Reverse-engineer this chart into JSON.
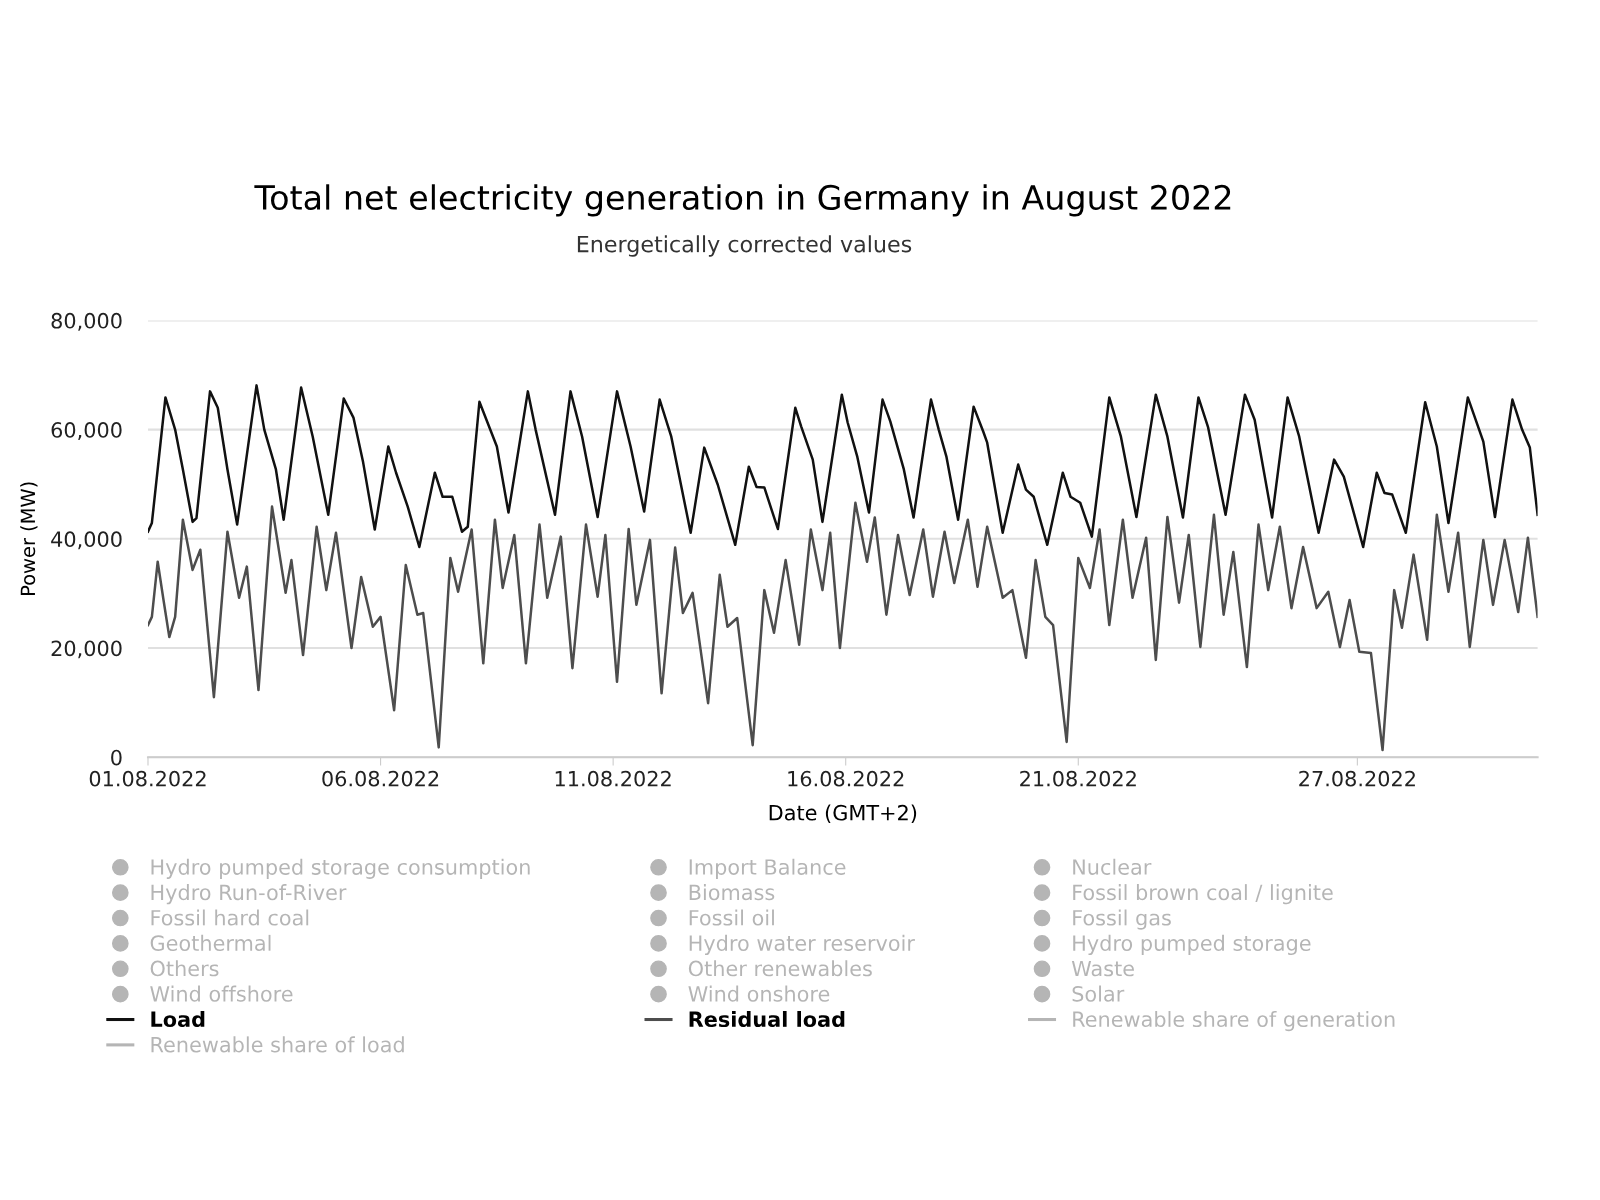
{
  "chart_data": {
    "type": "line",
    "title": "Total net electricity generation in Germany in August 2022",
    "subtitle": "Energetically corrected values",
    "xlabel": "Date (GMT+2)",
    "ylabel": "Power (MW)",
    "xlim": [
      "2022-08-01T00:00",
      "2022-08-30T21:00"
    ],
    "ylim": [
      0,
      80000
    ],
    "xticks": [
      {
        "value": "2022-08-01",
        "label": "01.08.2022"
      },
      {
        "value": "2022-08-06",
        "label": "06.08.2022"
      },
      {
        "value": "2022-08-11",
        "label": "11.08.2022"
      },
      {
        "value": "2022-08-16",
        "label": "16.08.2022"
      },
      {
        "value": "2022-08-21",
        "label": "21.08.2022"
      },
      {
        "value": "2022-08-27",
        "label": "27.08.2022"
      }
    ],
    "yticks": [
      {
        "value": 0,
        "label": "0"
      },
      {
        "value": 20000,
        "label": "20,000"
      },
      {
        "value": 40000,
        "label": "40,000"
      },
      {
        "value": 60000,
        "label": "60,000"
      },
      {
        "value": 80000,
        "label": "80,000"
      }
    ],
    "grid": "y",
    "legend": "bottom",
    "marker": "none",
    "line_style": "solid",
    "series": [
      {
        "name": "Hydro pumped storage consumption",
        "type": "area",
        "color": "#b5b5b5"
      },
      {
        "name": "Import Balance",
        "type": "area",
        "color": "#b5b5b5"
      },
      {
        "name": "Nuclear",
        "type": "area",
        "color": "#b5b5b5"
      },
      {
        "name": "Hydro Run-of-River",
        "type": "area",
        "color": "#b5b5b5"
      },
      {
        "name": "Biomass",
        "type": "area",
        "color": "#b5b5b5"
      },
      {
        "name": "Fossil brown coal / lignite",
        "type": "area",
        "color": "#b5b5b5"
      },
      {
        "name": "Fossil hard coal",
        "type": "area",
        "color": "#b5b5b5"
      },
      {
        "name": "Fossil oil",
        "type": "area",
        "color": "#b5b5b5"
      },
      {
        "name": "Fossil gas",
        "type": "area",
        "color": "#b5b5b5"
      },
      {
        "name": "Geothermal",
        "type": "area",
        "color": "#b5b5b5"
      },
      {
        "name": "Hydro water reservoir",
        "type": "area",
        "color": "#b5b5b5"
      },
      {
        "name": "Hydro pumped storage",
        "type": "area",
        "color": "#b5b5b5"
      },
      {
        "name": "Others",
        "type": "area",
        "color": "#b5b5b5"
      },
      {
        "name": "Other renewables",
        "type": "area",
        "color": "#b5b5b5"
      },
      {
        "name": "Waste",
        "type": "area",
        "color": "#b5b5b5"
      },
      {
        "name": "Wind offshore",
        "type": "area",
        "color": "#b5b5b5"
      },
      {
        "name": "Wind onshore",
        "type": "area",
        "color": "#b5b5b5"
      },
      {
        "name": "Solar",
        "type": "area",
        "color": "#b5b5b5"
      },
      {
        "name": "Load",
        "color": "#111111",
        "x": [
          "2022-08-01T00:00",
          "2022-08-01T02:00",
          "2022-08-01T09:00",
          "2022-08-01T14:00",
          "2022-08-01T18:00",
          "2022-08-01T23:00",
          "2022-08-02T01:00",
          "2022-08-02T08:00",
          "2022-08-02T12:00",
          "2022-08-02T17:00",
          "2022-08-02T22:00",
          "2022-08-03T08:00",
          "2022-08-03T12:00",
          "2022-08-03T18:00",
          "2022-08-03T22:00",
          "2022-08-04T07:00",
          "2022-08-04T13:00",
          "2022-08-04T21:00",
          "2022-08-05T05:00",
          "2022-08-05T10:00",
          "2022-08-05T15:00",
          "2022-08-05T21:00",
          "2022-08-06T04:00",
          "2022-08-06T08:00",
          "2022-08-06T14:00",
          "2022-08-06T20:00",
          "2022-08-07T04:00",
          "2022-08-07T08:00",
          "2022-08-07T13:00",
          "2022-08-07T18:00",
          "2022-08-07T21:00",
          "2022-08-08T03:00",
          "2022-08-08T12:00",
          "2022-08-08T18:00",
          "2022-08-09T04:00",
          "2022-08-09T08:00",
          "2022-08-09T18:00",
          "2022-08-10T02:00",
          "2022-08-10T08:00",
          "2022-08-10T16:00",
          "2022-08-11T02:00",
          "2022-08-11T09:00",
          "2022-08-11T16:00",
          "2022-08-12T00:00",
          "2022-08-12T06:00",
          "2022-08-12T16:00",
          "2022-08-12T23:00",
          "2022-08-13T06:00",
          "2022-08-13T15:00",
          "2022-08-13T22:00",
          "2022-08-14T02:00",
          "2022-08-14T06:00",
          "2022-08-14T13:00",
          "2022-08-14T22:00",
          "2022-08-15T01:00",
          "2022-08-15T07:00",
          "2022-08-15T12:00",
          "2022-08-15T22:00",
          "2022-08-16T01:00",
          "2022-08-16T06:00",
          "2022-08-16T12:00",
          "2022-08-16T19:00",
          "2022-08-16T23:00",
          "2022-08-17T06:00",
          "2022-08-17T11:00",
          "2022-08-17T20:00",
          "2022-08-18T00:00",
          "2022-08-18T04:00",
          "2022-08-18T10:00",
          "2022-08-18T18:00",
          "2022-08-18T23:00",
          "2022-08-19T01:00",
          "2022-08-19T09:00",
          "2022-08-19T17:00",
          "2022-08-19T21:00",
          "2022-08-20T01:00",
          "2022-08-20T08:00",
          "2022-08-20T16:00",
          "2022-08-20T20:00",
          "2022-08-21T01:00",
          "2022-08-21T07:00",
          "2022-08-21T16:00",
          "2022-08-21T22:00",
          "2022-08-22T06:00",
          "2022-08-22T16:00",
          "2022-08-22T22:00",
          "2022-08-23T06:00",
          "2022-08-23T14:00",
          "2022-08-23T19:00",
          "2022-08-24T04:00",
          "2022-08-24T14:00",
          "2022-08-24T19:00",
          "2022-08-25T04:00",
          "2022-08-25T12:00",
          "2022-08-25T18:00",
          "2022-08-26T04:00",
          "2022-08-26T12:00",
          "2022-08-26T17:00",
          "2022-08-27T03:00",
          "2022-08-27T10:00",
          "2022-08-27T14:00",
          "2022-08-27T18:00",
          "2022-08-28T01:00",
          "2022-08-28T11:00",
          "2022-08-28T17:00",
          "2022-08-28T23:00",
          "2022-08-29T09:00",
          "2022-08-29T17:00",
          "2022-08-29T23:00",
          "2022-08-30T08:00",
          "2022-08-30T13:00",
          "2022-08-30T17:00",
          "2022-08-30T21:00"
        ],
        "values": [
          41300,
          42900,
          65900,
          60000,
          52700,
          43100,
          43800,
          67000,
          64000,
          52700,
          42600,
          68100,
          60000,
          52700,
          43500,
          67700,
          58700,
          44400,
          65700,
          62200,
          54000,
          41700,
          56900,
          52100,
          45900,
          38500,
          52100,
          47700,
          47700,
          41300,
          42200,
          65100,
          56900,
          44800,
          67000,
          60000,
          44400,
          67000,
          58700,
          44000,
          67000,
          56900,
          45000,
          65500,
          58700,
          41100,
          56700,
          49900,
          38900,
          53200,
          49500,
          49400,
          41800,
          64000,
          60600,
          54500,
          43100,
          66400,
          61300,
          55000,
          44800,
          65500,
          61500,
          52700,
          43900,
          65500,
          60000,
          55000,
          43500,
          64200,
          59600,
          57600,
          41100,
          53600,
          49000,
          47700,
          38900,
          52100,
          47700,
          46600,
          40400,
          65900,
          58700,
          44000,
          66400,
          58700,
          43900,
          65900,
          60400,
          44400,
          66400,
          61800,
          43900,
          65900,
          58700,
          41100,
          54500,
          51400,
          38500,
          52100,
          48400,
          48100,
          41100,
          65000,
          56900,
          42900,
          65900,
          57800,
          44000,
          65500,
          60000,
          56700,
          44400
        ]
      },
      {
        "name": "Residual load",
        "color": "#4d4d4d",
        "x": [
          "2022-08-01T00:00",
          "2022-08-01T02:00",
          "2022-08-01T05:00",
          "2022-08-01T08:00",
          "2022-08-01T11:00",
          "2022-08-01T14:00",
          "2022-08-01T18:00",
          "2022-08-01T23:00",
          "2022-08-02T03:00",
          "2022-08-02T10:00",
          "2022-08-02T17:00",
          "2022-08-02T23:00",
          "2022-08-03T03:00",
          "2022-08-03T09:00",
          "2022-08-03T16:00",
          "2022-08-03T23:00",
          "2022-08-04T02:00",
          "2022-08-04T08:00",
          "2022-08-04T15:00",
          "2022-08-04T20:00",
          "2022-08-05T01:00",
          "2022-08-05T09:00",
          "2022-08-05T14:00",
          "2022-08-05T20:00",
          "2022-08-06T00:00",
          "2022-08-06T07:00",
          "2022-08-06T13:00",
          "2022-08-06T19:00",
          "2022-08-06T22:00",
          "2022-08-07T06:00",
          "2022-08-07T12:00",
          "2022-08-07T16:00",
          "2022-08-07T23:00",
          "2022-08-08T05:00",
          "2022-08-08T11:00",
          "2022-08-08T15:00",
          "2022-08-08T21:00",
          "2022-08-09T03:00",
          "2022-08-09T10:00",
          "2022-08-09T14:00",
          "2022-08-09T21:00",
          "2022-08-10T03:00",
          "2022-08-10T10:00",
          "2022-08-10T16:00",
          "2022-08-10T20:00",
          "2022-08-11T02:00",
          "2022-08-11T08:00",
          "2022-08-11T12:00",
          "2022-08-11T19:00",
          "2022-08-12T01:00",
          "2022-08-12T08:00",
          "2022-08-12T12:00",
          "2022-08-12T17:00",
          "2022-08-13T01:00",
          "2022-08-13T07:00",
          "2022-08-13T11:00",
          "2022-08-13T16:00",
          "2022-08-14T00:00",
          "2022-08-14T06:00",
          "2022-08-14T11:00",
          "2022-08-14T17:00",
          "2022-08-15T00:00",
          "2022-08-15T06:00",
          "2022-08-15T12:00",
          "2022-08-15T16:00",
          "2022-08-15T21:00",
          "2022-08-16T05:00",
          "2022-08-16T11:00",
          "2022-08-16T15:00",
          "2022-08-16T21:00",
          "2022-08-17T03:00",
          "2022-08-17T09:00",
          "2022-08-17T16:00",
          "2022-08-17T21:00",
          "2022-08-18T03:00",
          "2022-08-18T08:00",
          "2022-08-18T15:00",
          "2022-08-18T20:00",
          "2022-08-19T01:00",
          "2022-08-19T09:00",
          "2022-08-19T14:00",
          "2022-08-19T21:00",
          "2022-08-20T02:00",
          "2022-08-20T07:00",
          "2022-08-20T11:00",
          "2022-08-20T18:00",
          "2022-08-21T00:00",
          "2022-08-21T06:00",
          "2022-08-21T11:00",
          "2022-08-21T16:00",
          "2022-08-21T23:00",
          "2022-08-22T04:00",
          "2022-08-22T11:00",
          "2022-08-22T16:00",
          "2022-08-22T22:00",
          "2022-08-23T04:00",
          "2022-08-23T09:00",
          "2022-08-23T15:00",
          "2022-08-23T22:00",
          "2022-08-24T03:00",
          "2022-08-24T08:00",
          "2022-08-24T15:00",
          "2022-08-24T21:00",
          "2022-08-25T02:00",
          "2022-08-25T08:00",
          "2022-08-25T14:00",
          "2022-08-25T20:00",
          "2022-08-26T03:00",
          "2022-08-26T09:00",
          "2022-08-26T15:00",
          "2022-08-26T20:00",
          "2022-08-27T01:00",
          "2022-08-27T07:00",
          "2022-08-27T13:00",
          "2022-08-27T19:00",
          "2022-08-27T23:00",
          "2022-08-28T05:00",
          "2022-08-28T12:00",
          "2022-08-28T17:00",
          "2022-08-28T23:00",
          "2022-08-29T04:00",
          "2022-08-29T10:00",
          "2022-08-29T17:00",
          "2022-08-29T22:00",
          "2022-08-30T04:00",
          "2022-08-30T11:00",
          "2022-08-30T16:00",
          "2022-08-30T21:00"
        ],
        "values": [
          24200,
          25700,
          35800,
          28800,
          22000,
          25700,
          43500,
          34300,
          38000,
          11000,
          41300,
          29200,
          34900,
          12300,
          45900,
          30100,
          36100,
          18700,
          42200,
          30600,
          41100,
          20000,
          33000,
          23900,
          25700,
          8600,
          35200,
          26100,
          26400,
          1800,
          36500,
          30300,
          41700,
          17200,
          43500,
          31000,
          40700,
          17200,
          42600,
          29200,
          40400,
          16300,
          42600,
          29400,
          40700,
          13800,
          41800,
          27900,
          39800,
          11700,
          38400,
          26400,
          30100,
          9900,
          33400,
          23900,
          25500,
          2200,
          30600,
          22800,
          36100,
          20600,
          41700,
          30600,
          41100,
          20000,
          46600,
          35800,
          43900,
          26100,
          40700,
          29700,
          41700,
          29400,
          41300,
          31900,
          43500,
          31200,
          42200,
          29200,
          30600,
          18200,
          36100,
          25700,
          24200,
          2800,
          36500,
          31000,
          41700,
          24200,
          43500,
          29200,
          40200,
          17800,
          44000,
          28300,
          40700,
          20200,
          44400,
          26100,
          37600,
          16500,
          42600,
          30600,
          42200,
          27300,
          38500,
          27300,
          30300,
          20200,
          28800,
          19300,
          19100,
          1300,
          30600,
          23700,
          37100,
          21500,
          44400,
          30300,
          41100,
          20200,
          39800,
          27900,
          39800,
          26600,
          40200,
          25700
        ]
      },
      {
        "name": "Renewable share of generation",
        "color": "#b5b5b5"
      },
      {
        "name": "Renewable share of load",
        "color": "#b5b5b5"
      }
    ]
  }
}
